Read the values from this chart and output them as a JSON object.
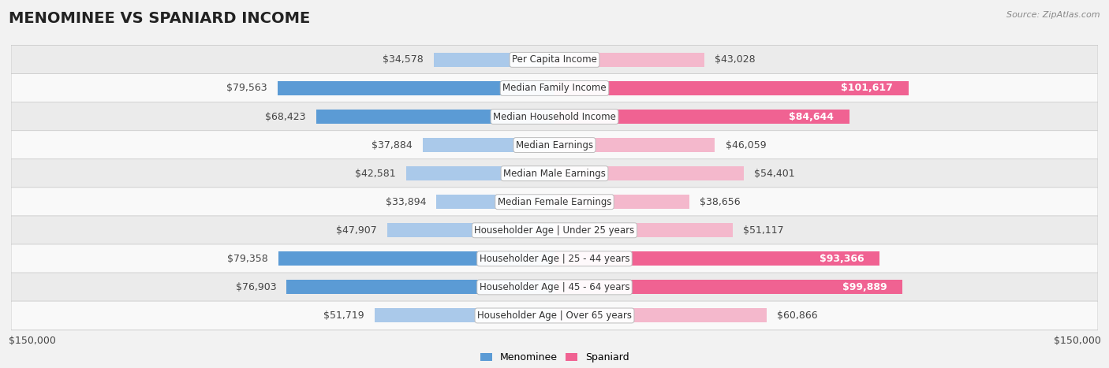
{
  "title": "MENOMINEE VS SPANIARD INCOME",
  "source": "Source: ZipAtlas.com",
  "categories": [
    "Per Capita Income",
    "Median Family Income",
    "Median Household Income",
    "Median Earnings",
    "Median Male Earnings",
    "Median Female Earnings",
    "Householder Age | Under 25 years",
    "Householder Age | 25 - 44 years",
    "Householder Age | 45 - 64 years",
    "Householder Age | Over 65 years"
  ],
  "menominee_values": [
    34578,
    79563,
    68423,
    37884,
    42581,
    33894,
    47907,
    79358,
    76903,
    51719
  ],
  "spaniard_values": [
    43028,
    101617,
    84644,
    46059,
    54401,
    38656,
    51117,
    93366,
    99889,
    60866
  ],
  "menominee_labels": [
    "$34,578",
    "$79,563",
    "$68,423",
    "$37,884",
    "$42,581",
    "$33,894",
    "$47,907",
    "$79,358",
    "$76,903",
    "$51,719"
  ],
  "spaniard_labels": [
    "$43,028",
    "$101,617",
    "$84,644",
    "$46,059",
    "$54,401",
    "$38,656",
    "$51,117",
    "$93,366",
    "$99,889",
    "$60,866"
  ],
  "menominee_color_light": "#aac9ea",
  "menominee_color_dark": "#5b9bd5",
  "spaniard_color_light": "#f4b8cc",
  "spaniard_color_dark": "#f06292",
  "spaniard_label_dark_color": "#e05080",
  "max_val": 150000,
  "bg_color": "#f2f2f2",
  "row_bg_even": "#ebebeb",
  "row_bg_odd": "#f9f9f9",
  "bar_height": 0.5,
  "title_fontsize": 14,
  "label_fontsize": 9,
  "category_fontsize": 8.5,
  "legend_fontsize": 9,
  "axis_label_fontsize": 9,
  "men_dark_threshold": 60000,
  "spa_dark_threshold": 80000
}
